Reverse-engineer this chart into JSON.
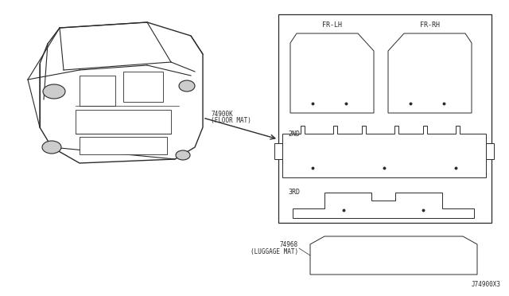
{
  "background_color": "#ffffff",
  "line_color": "#2a2a2a",
  "text_color": "#2a2a2a",
  "diagram_part_number": "J74900X3",
  "floor_mat_label_line1": "74900K",
  "floor_mat_label_line2": "(FLOOR MAT)",
  "luggage_mat_label_line1": "74968",
  "luggage_mat_label_line2": "(LUGGAGE MAT)",
  "label_fr_lh": "FR-LH",
  "label_fr_rh": "FR-RH",
  "label_2nd": "2ND",
  "label_3rd": "3RD"
}
